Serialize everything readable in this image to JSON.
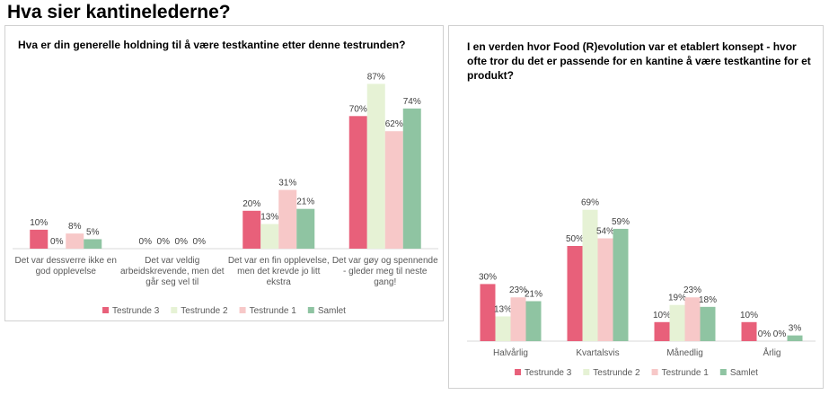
{
  "page": {
    "title": "Hva sier kantinelederne?"
  },
  "chart_data": [
    {
      "type": "bar",
      "title": "Hva er din generelle holdning til å være testkantine etter denne testrunden?",
      "categories": [
        [
          "Det var dessverre ikke en",
          "god opplevelse"
        ],
        [
          "Det var veldig",
          "arbeidskrevende, men det",
          "går seg vel til"
        ],
        [
          "Det var en fin opplevelse,",
          "men det krevde jo litt",
          "ekstra"
        ],
        [
          "Det var gøy og spennende",
          "- gleder meg til neste",
          "gang!"
        ]
      ],
      "series": [
        {
          "name": "Testrunde 3",
          "color": "#e8607a",
          "values": [
            10,
            0,
            20,
            70
          ]
        },
        {
          "name": "Testrunde 2",
          "color": "#e6f2d5",
          "values": [
            0,
            0,
            13,
            87
          ]
        },
        {
          "name": "Testrunde 1",
          "color": "#f7c8c8",
          "values": [
            8,
            0,
            31,
            62
          ]
        },
        {
          "name": "Samlet",
          "color": "#8fc4a2",
          "values": [
            5,
            0,
            21,
            74
          ]
        }
      ],
      "unit": "%",
      "legend": "bottom",
      "grid": false
    },
    {
      "type": "bar",
      "title": "I en verden hvor Food (R)evolution var et etablert konsept - hvor ofte tror du det er passende for en kantine å være testkantine for et produkt?",
      "categories": [
        [
          "Halvårlig"
        ],
        [
          "Kvartalsvis"
        ],
        [
          "Månedlig"
        ],
        [
          "Årlig"
        ]
      ],
      "series": [
        {
          "name": "Testrunde 3",
          "color": "#e8607a",
          "values": [
            30,
            50,
            10,
            10
          ]
        },
        {
          "name": "Testrunde 2",
          "color": "#e6f2d5",
          "values": [
            13,
            69,
            19,
            0
          ]
        },
        {
          "name": "Testrunde 1",
          "color": "#f7c8c8",
          "values": [
            23,
            54,
            23,
            0
          ]
        },
        {
          "name": "Samlet",
          "color": "#8fc4a2",
          "values": [
            21,
            59,
            18,
            3
          ]
        }
      ],
      "unit": "%",
      "legend": "bottom",
      "grid": false
    }
  ]
}
